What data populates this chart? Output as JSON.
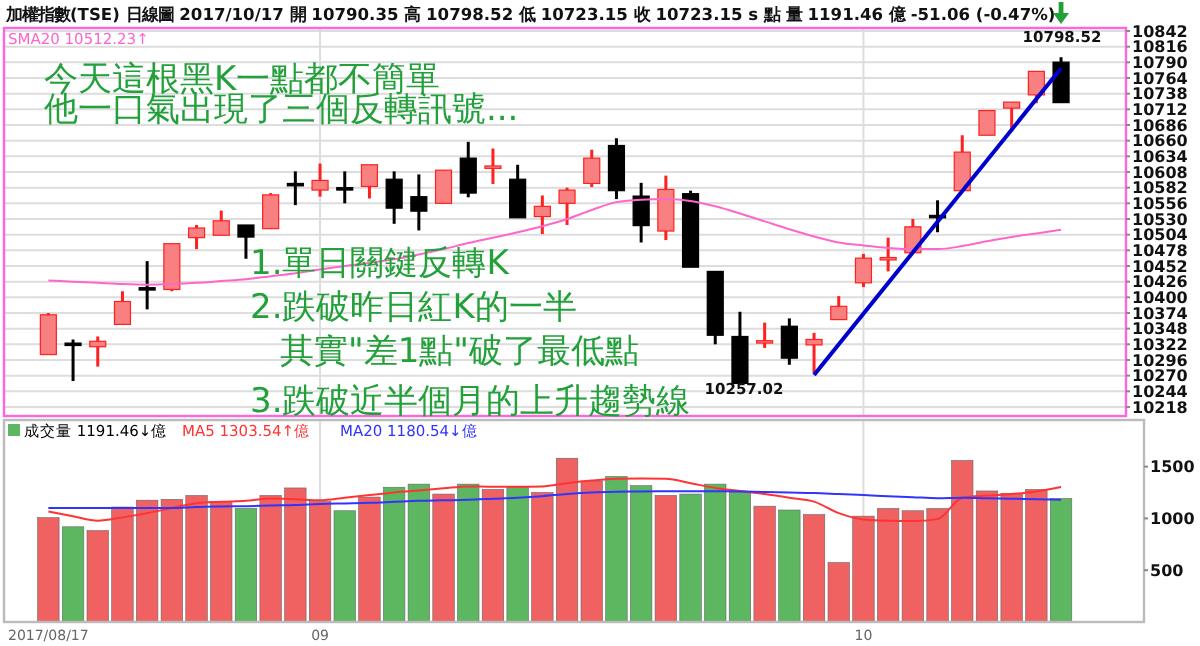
{
  "chart_data": [
    {
      "type": "candlestick",
      "title": "加權指數(TSE)  日線圖  2017/10/17  開 10790.35  高 10798.52  低 10723.15  收 10723.15 s 點  量 1191.46 億  -51.06 (-0.47%)",
      "categories": [
        "2017/08/17",
        null,
        null,
        null,
        null,
        null,
        null,
        null,
        null,
        null,
        null,
        "09",
        null,
        null,
        null,
        null,
        null,
        null,
        null,
        null,
        null,
        null,
        null,
        null,
        null,
        null,
        null,
        null,
        null,
        null,
        null,
        null,
        null,
        "10",
        null,
        null,
        null,
        null,
        null,
        null,
        null,
        null
      ],
      "ohlc": [
        [
          10305,
          10374,
          10305,
          10371
        ],
        [
          10324,
          10330,
          10261,
          10323
        ],
        [
          10318,
          10335,
          10285,
          10327
        ],
        [
          10355,
          10410,
          10355,
          10393
        ],
        [
          10416,
          10460,
          10380,
          10414
        ],
        [
          10413,
          10489,
          10410,
          10489
        ],
        [
          10499,
          10520,
          10480,
          10515
        ],
        [
          10503,
          10544,
          10503,
          10527
        ],
        [
          10520,
          10520,
          10464,
          10500
        ],
        [
          10514,
          10573,
          10514,
          10570
        ],
        [
          10589,
          10609,
          10553,
          10588
        ],
        [
          10578,
          10622,
          10567,
          10594
        ],
        [
          10582,
          10609,
          10556,
          10580
        ],
        [
          10584,
          10620,
          10564,
          10620
        ],
        [
          10596,
          10609,
          10522,
          10548
        ],
        [
          10567,
          10604,
          10511,
          10543
        ],
        [
          10556,
          10611,
          10556,
          10611
        ],
        [
          10631,
          10658,
          10566,
          10573
        ],
        [
          10616,
          10647,
          10588,
          10618
        ],
        [
          10596,
          10620,
          10532,
          10532
        ],
        [
          10534,
          10569,
          10505,
          10551
        ],
        [
          10556,
          10582,
          10520,
          10578
        ],
        [
          10589,
          10645,
          10583,
          10631
        ],
        [
          10652,
          10664,
          10563,
          10577
        ],
        [
          10568,
          10590,
          10491,
          10519
        ],
        [
          10510,
          10602,
          10495,
          10579
        ],
        [
          10572,
          10577,
          10450,
          10450
        ],
        [
          10443,
          10443,
          10322,
          10337
        ],
        [
          10335,
          10376,
          10257.02,
          10257.02
        ],
        [
          10326,
          10358,
          10316,
          10328
        ],
        [
          10352,
          10365,
          10288,
          10299
        ],
        [
          10321,
          10341,
          10274,
          10330
        ],
        [
          10363,
          10402,
          10363,
          10385
        ],
        [
          10424,
          10472,
          10417,
          10465
        ],
        [
          10465,
          10499,
          10443,
          10466
        ],
        [
          10474,
          10530,
          10474,
          10517
        ],
        [
          10536,
          10561,
          10508,
          10535
        ],
        [
          10577,
          10669,
          10577,
          10641
        ],
        [
          10669,
          10710,
          10669,
          10710
        ],
        [
          10714,
          10724,
          10675,
          10724
        ],
        [
          10736,
          10775,
          10722,
          10775
        ],
        [
          10790.35,
          10798.52,
          10723.15,
          10723.15
        ]
      ],
      "series": [
        {
          "name": "SMA20 10512.23↑",
          "type": "line",
          "color": "#ff66cc",
          "values": [
            10428,
            10426,
            10424,
            10422,
            10421,
            10422,
            10424,
            10427,
            10430,
            10435,
            10440,
            10446,
            10452,
            10457,
            10463,
            10471,
            10480,
            10490,
            10499,
            10508,
            10518,
            10530,
            10545,
            10558,
            10562,
            10563,
            10560,
            10551,
            10539,
            10526,
            10513,
            10501,
            10491,
            10486,
            10482,
            10480,
            10480,
            10485,
            10493,
            10500,
            10506,
            10512.23
          ]
        },
        {
          "type": "line",
          "color": "#0000cc",
          "values": [
            null,
            null,
            null,
            null,
            null,
            null,
            null,
            null,
            null,
            null,
            null,
            null,
            null,
            null,
            null,
            null,
            null,
            null,
            null,
            null,
            null,
            null,
            null,
            null,
            null,
            null,
            null,
            null,
            null,
            null,
            null,
            10271,
            null,
            null,
            null,
            null,
            null,
            null,
            null,
            null,
            null,
            10780
          ]
        }
      ],
      "ylim": [
        10203,
        10847
      ],
      "yticks": [
        10218,
        10244,
        10270,
        10296,
        10322,
        10348,
        10374,
        10400,
        10426,
        10452,
        10478,
        10504,
        10530,
        10556,
        10582,
        10608,
        10634,
        10660,
        10686,
        10712,
        10738,
        10764,
        10790,
        10816,
        10842
      ],
      "grid": true,
      "legend": "top left",
      "tick_labels": "y",
      "annotations": [
        "今天這根黑K一點都不簡單",
        "他一口氣出現了三個反轉訊號...",
        "1.單日關鍵反轉K",
        "2.跌破昨日紅K的一半",
        "其實\"差1點\"破了最低點",
        "3.跌破近半個月的上升趨勢線",
        "10798.52",
        "10257.02"
      ]
    },
    {
      "type": "bar",
      "categories": [
        "2017/08/17",
        null,
        null,
        null,
        null,
        null,
        null,
        null,
        null,
        null,
        null,
        "09",
        null,
        null,
        null,
        null,
        null,
        null,
        null,
        null,
        null,
        null,
        null,
        null,
        null,
        null,
        null,
        null,
        null,
        null,
        null,
        null,
        null,
        "10",
        null,
        null,
        null,
        null,
        null,
        null,
        null,
        null
      ],
      "series": [
        {
          "name": "成交量 1191.46↓億",
          "type": "bar",
          "colors": [
            "#f06262",
            "#5db760",
            "#f06262",
            "#f06262",
            "#f06262",
            "#f06262",
            "#f06262",
            "#f06262",
            "#5db760",
            "#f06262",
            "#f06262",
            "#f06262",
            "#5db760",
            "#f06262",
            "#5db760",
            "#5db760",
            "#f06262",
            "#5db760",
            "#f06262",
            "#5db760",
            "#f06262",
            "#f06262",
            "#f06262",
            "#5db760",
            "#5db760",
            "#f06262",
            "#5db760",
            "#5db760",
            "#5db760",
            "#f06262",
            "#5db760",
            "#f06262",
            "#f06262",
            "#f06262",
            "#f06262",
            "#f06262",
            "#f06262",
            "#f06262",
            "#f06262",
            "#f06262",
            "#f06262",
            "#5db760"
          ],
          "values": [
            1007,
            919,
            882,
            1110,
            1176,
            1184,
            1221,
            1162,
            1096,
            1221,
            1294,
            1162,
            1074,
            1206,
            1301,
            1331,
            1235,
            1331,
            1279,
            1301,
            1250,
            1581,
            1360,
            1404,
            1316,
            1221,
            1235,
            1331,
            1250,
            1118,
            1081,
            1037,
            574,
            1022,
            1096,
            1074,
            1096,
            1559,
            1265,
            1243,
            1279,
            1191.46
          ]
        },
        {
          "name": "MA5 1303.54↑億",
          "type": "line",
          "color": "#ff3333",
          "values": [
            1066,
            1020,
            978,
            1010,
            1051,
            1100,
            1147,
            1160,
            1170,
            1191,
            1185,
            1176,
            1200,
            1225,
            1250,
            1270,
            1290,
            1309,
            1305,
            1305,
            1309,
            1340,
            1365,
            1382,
            1385,
            1382,
            1340,
            1294,
            1265,
            1235,
            1200,
            1162,
            1051,
            990,
            978,
            975,
            993,
            1199,
            1220,
            1235,
            1260,
            1303.54
          ]
        },
        {
          "name": "MA20 1180.54↓億",
          "type": "line",
          "color": "#3333ff",
          "values": [
            1100,
            1100,
            1100,
            1100,
            1100,
            1100,
            1110,
            1115,
            1118,
            1125,
            1130,
            1140,
            1145,
            1150,
            1160,
            1170,
            1175,
            1180,
            1190,
            1200,
            1215,
            1235,
            1250,
            1257,
            1260,
            1262,
            1262,
            1262,
            1260,
            1255,
            1250,
            1245,
            1235,
            1225,
            1215,
            1205,
            1195,
            1200,
            1195,
            1190,
            1185,
            1180.54
          ]
        }
      ],
      "ylim": [
        0,
        1950
      ],
      "yticks": [
        500,
        1000,
        1500
      ],
      "grid": "x",
      "legend": "top left"
    }
  ]
}
